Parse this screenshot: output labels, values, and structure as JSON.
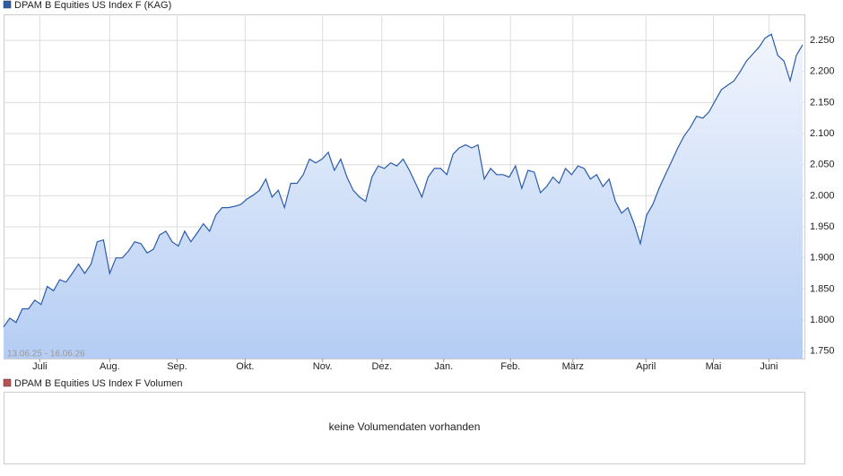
{
  "chart_data": {
    "type": "line",
    "series": [
      {
        "name": "DPAM B Equities US Index F (KAG)",
        "color": "#2a5caa",
        "values": [
          1789,
          1803,
          1796,
          1818,
          1818,
          1832,
          1825,
          1854,
          1847,
          1865,
          1861,
          1875,
          1890,
          1875,
          1890,
          1926,
          1929,
          1875,
          1900,
          1900,
          1911,
          1926,
          1923,
          1908,
          1914,
          1937,
          1943,
          1926,
          1919,
          1943,
          1926,
          1940,
          1955,
          1943,
          1969,
          1981,
          1981,
          1983,
          1986,
          1995,
          2001,
          2009,
          2027,
          1998,
          2009,
          1981,
          2020,
          2020,
          2034,
          2059,
          2053,
          2059,
          2070,
          2041,
          2059,
          2030,
          2009,
          1998,
          1991,
          2030,
          2048,
          2044,
          2053,
          2048,
          2059,
          2041,
          2020,
          1998,
          2030,
          2044,
          2044,
          2034,
          2067,
          2077,
          2082,
          2077,
          2082,
          2027,
          2044,
          2034,
          2034,
          2030,
          2048,
          2012,
          2041,
          2038,
          2005,
          2015,
          2030,
          2020,
          2044,
          2034,
          2048,
          2044,
          2027,
          2034,
          2015,
          2027,
          1991,
          1972,
          1981,
          1955,
          1923,
          1969,
          1986,
          2012,
          2034,
          2055,
          2077,
          2096,
          2110,
          2128,
          2125,
          2135,
          2153,
          2171,
          2178,
          2185,
          2200,
          2217,
          2228,
          2239,
          2254,
          2260,
          2226,
          2217,
          2185,
          2226,
          2243
        ]
      }
    ],
    "xlim": [
      0,
      128
    ],
    "xticks": [
      {
        "value": 5.8,
        "label": "Juli"
      },
      {
        "value": 17,
        "label": "Aug."
      },
      {
        "value": 27.8,
        "label": "Sep."
      },
      {
        "value": 38.7,
        "label": "Okt."
      },
      {
        "value": 51.1,
        "label": "Nov."
      },
      {
        "value": 60.6,
        "label": "Dez."
      },
      {
        "value": 70.5,
        "label": "Jan."
      },
      {
        "value": 81.2,
        "label": "Feb."
      },
      {
        "value": 91.2,
        "label": "März"
      },
      {
        "value": 102.9,
        "label": "April"
      },
      {
        "value": 113.7,
        "label": "Mai"
      },
      {
        "value": 122.6,
        "label": "Juni"
      }
    ],
    "ylim": [
      1738,
      2292
    ],
    "yticks": [
      {
        "value": 1750,
        "label": "1.750"
      },
      {
        "value": 1800,
        "label": "1.800"
      },
      {
        "value": 1850,
        "label": "1.850"
      },
      {
        "value": 1900,
        "label": "1.900"
      },
      {
        "value": 1950,
        "label": "1.950"
      },
      {
        "value": 2000,
        "label": "2.000"
      },
      {
        "value": 2050,
        "label": "2.050"
      },
      {
        "value": 2100,
        "label": "2.100"
      },
      {
        "value": 2150,
        "label": "2.150"
      },
      {
        "value": 2200,
        "label": "2.200"
      },
      {
        "value": 2250,
        "label": "2.250"
      }
    ],
    "grid": true,
    "date_range": "13.06.25 - 16.06.26"
  },
  "volume": {
    "legend": "DPAM B Equities US Index F Volumen",
    "color": "#c0504d",
    "message": "keine Volumendaten vorhanden"
  }
}
